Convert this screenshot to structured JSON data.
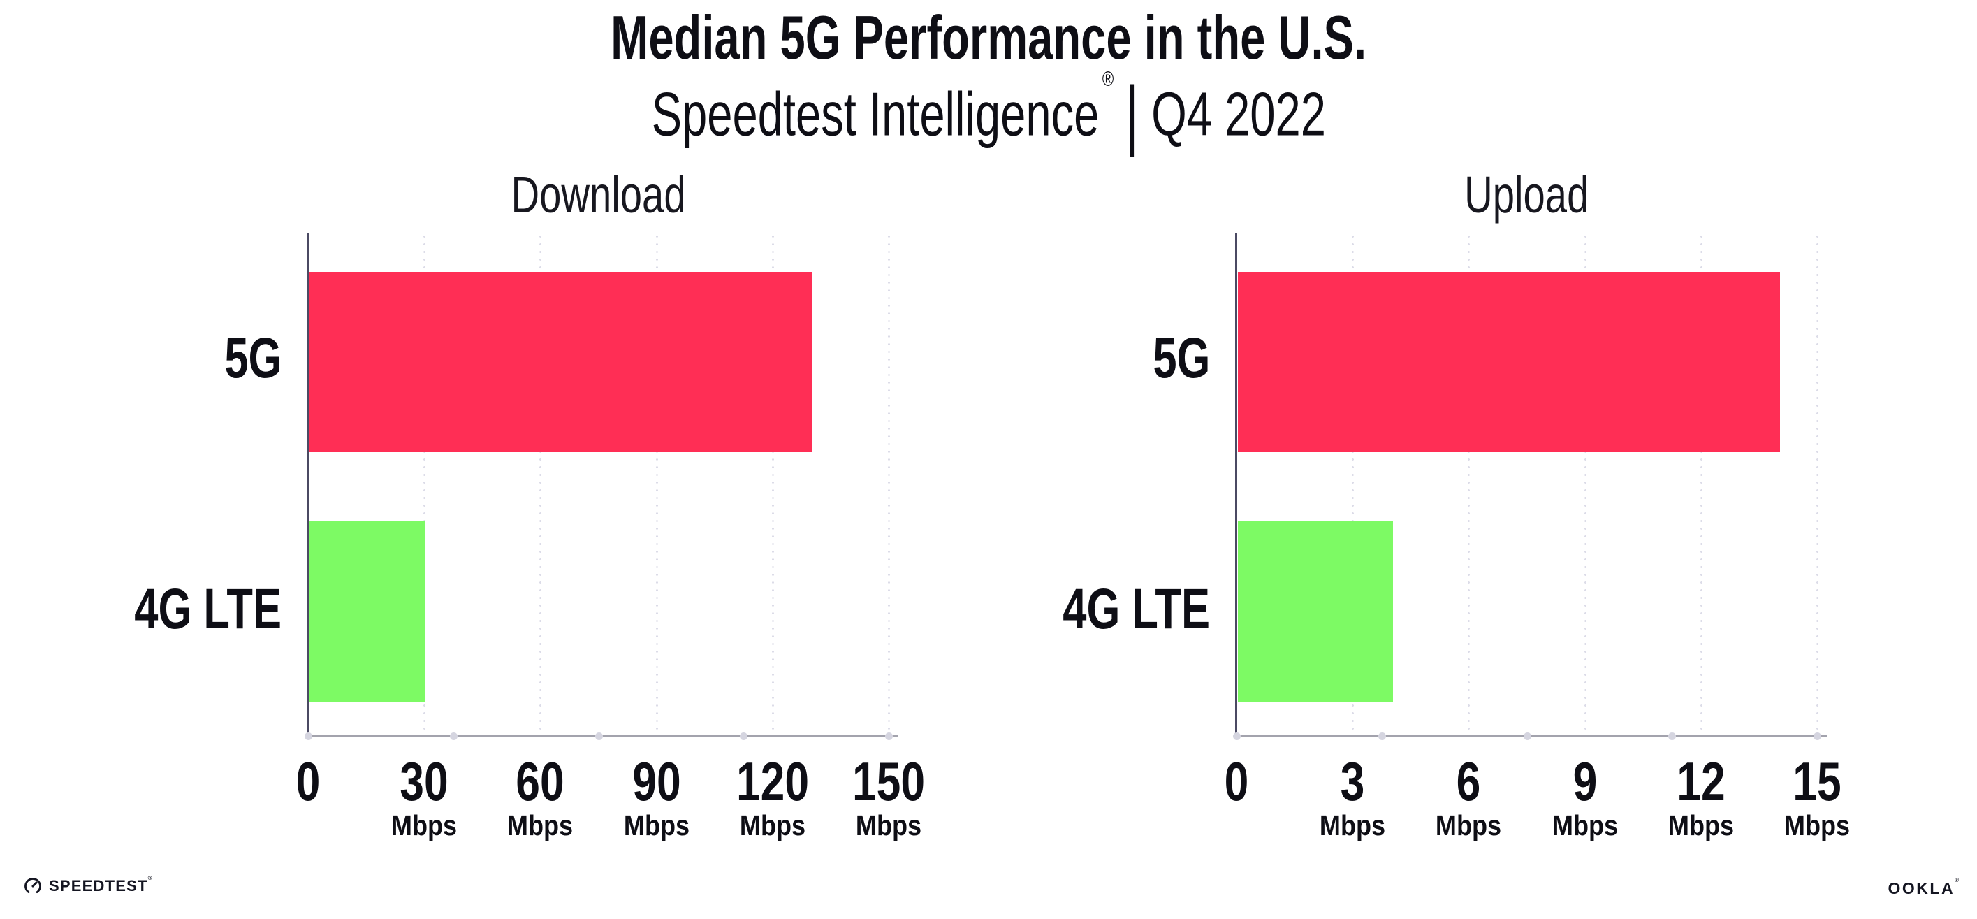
{
  "page": {
    "title": "Median 5G Performance in the U.S.",
    "subtitle_brand": "Speedtest Intelligence",
    "subtitle_reg": "®",
    "subtitle_divider": "|",
    "subtitle_period": "Q4 2022"
  },
  "footer": {
    "speedtest_label": "SPEEDTEST",
    "speedtest_reg": "®",
    "speedtest_icon": "speedtest-gauge-icon",
    "ookla_label": "OOKLA",
    "ookla_reg": "®"
  },
  "colors": {
    "bar_5g": "#FF2E55",
    "bar_4g_lte": "#7DFA64",
    "text": "#0E0E15",
    "y_axis_spine": "#4B4A63",
    "x_axis_line": "#A3A3AD",
    "gridline_dots": "#DCDCE8",
    "axis_tick_dots": "#D5D5E0",
    "background": "#FFFFFF"
  },
  "chart_data": [
    {
      "type": "bar",
      "title": "Download",
      "orientation": "horizontal",
      "categories": [
        "5G",
        "4G LTE"
      ],
      "values": [
        130,
        30
      ],
      "unit": "Mbps",
      "xlabel": "",
      "ylabel": "",
      "xlim": [
        0,
        150
      ],
      "xticks": [
        0,
        30,
        60,
        90,
        120,
        150
      ],
      "bar_colors": [
        "#FF2E55",
        "#7DFA64"
      ],
      "grid": "dotted-vertical",
      "legend": "none"
    },
    {
      "type": "bar",
      "title": "Upload",
      "orientation": "horizontal",
      "categories": [
        "5G",
        "4G LTE"
      ],
      "values": [
        14,
        4
      ],
      "unit": "Mbps",
      "xlabel": "",
      "ylabel": "",
      "xlim": [
        0,
        15
      ],
      "xticks": [
        0,
        3,
        6,
        9,
        12,
        15
      ],
      "bar_colors": [
        "#FF2E55",
        "#7DFA64"
      ],
      "grid": "dotted-vertical",
      "legend": "none"
    }
  ]
}
